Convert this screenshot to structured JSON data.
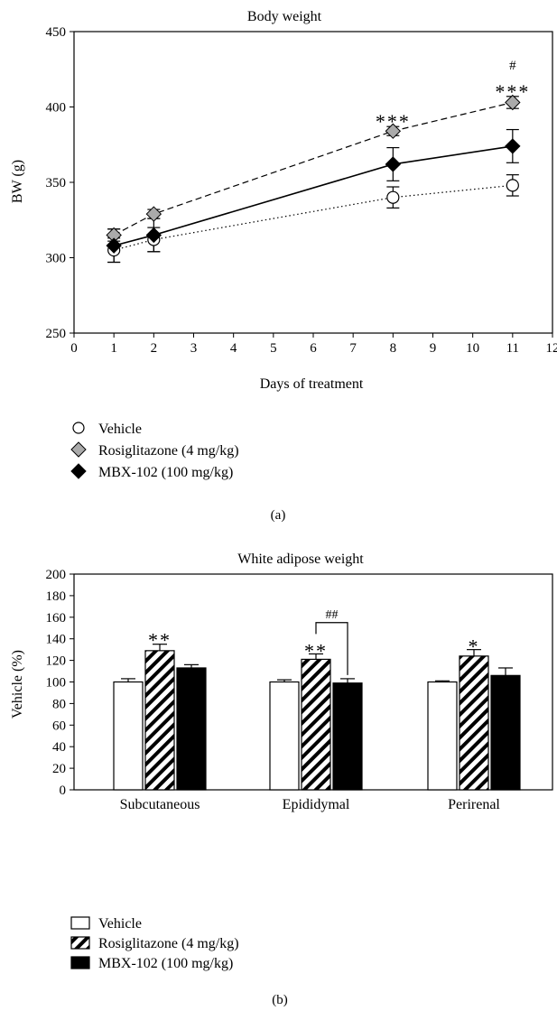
{
  "chart_data": [
    {
      "panel": "(a)",
      "type": "line",
      "title": "Body weight",
      "xlabel": "Days of treatment",
      "ylabel": "BW (g)",
      "xlim": [
        0,
        12
      ],
      "ylim": [
        250,
        450
      ],
      "xticks": [
        0,
        1,
        2,
        3,
        4,
        5,
        6,
        7,
        8,
        9,
        10,
        11,
        12
      ],
      "yticks": [
        250,
        300,
        350,
        400,
        450
      ],
      "legend_position": "bottom",
      "grid": false,
      "series": [
        {
          "name": "Vehicle",
          "marker": "open-circle",
          "line": "dotted",
          "x": [
            1,
            2,
            8,
            11
          ],
          "y": [
            305,
            312,
            340,
            348
          ],
          "err": [
            8,
            8,
            7,
            7
          ]
        },
        {
          "name": "Rosiglitazone (4 mg/kg)",
          "marker": "gray-diamond",
          "line": "dashed",
          "x": [
            1,
            2,
            8,
            11
          ],
          "y": [
            315,
            329,
            384,
            403
          ],
          "err": [
            4,
            3,
            3,
            4
          ]
        },
        {
          "name": "MBX-102 (100 mg/kg)",
          "marker": "black-diamond",
          "line": "solid",
          "x": [
            1,
            2,
            8,
            11
          ],
          "y": [
            308,
            315,
            362,
            374
          ],
          "err": [
            11,
            11,
            11,
            11
          ]
        }
      ],
      "annotations": [
        {
          "text": "***",
          "x": 8,
          "y": 393
        },
        {
          "text": "***",
          "x": 11,
          "y": 413
        },
        {
          "text": "#",
          "x": 11,
          "y": 425
        }
      ]
    },
    {
      "panel": "(b)",
      "type": "bar",
      "title": "White adipose weight",
      "xlabel": "",
      "ylabel": "Vehicle (%)",
      "ylim": [
        0,
        200
      ],
      "yticks": [
        0,
        20,
        40,
        60,
        80,
        100,
        120,
        140,
        160,
        180,
        200
      ],
      "categories": [
        "Subcutaneous",
        "Epididymal",
        "Perirenal"
      ],
      "legend_position": "bottom",
      "grid": false,
      "series": [
        {
          "name": "Vehicle",
          "fill": "white",
          "values": [
            100,
            100,
            100
          ],
          "err": [
            3,
            2,
            1
          ]
        },
        {
          "name": "Rosiglitazone (4 mg/kg)",
          "fill": "hatched",
          "values": [
            129,
            121,
            124
          ],
          "err": [
            6,
            5,
            6
          ]
        },
        {
          "name": "MBX-102 (100 mg/kg)",
          "fill": "black",
          "values": [
            113,
            99,
            106
          ],
          "err": [
            3,
            4,
            7
          ]
        }
      ],
      "annotations": [
        {
          "text": "**",
          "category": 0,
          "series": 1,
          "y": 141
        },
        {
          "text": "**",
          "category": 1,
          "series": 1,
          "y": 131
        },
        {
          "text": "*",
          "category": 2,
          "series": 1,
          "y": 135
        },
        {
          "text": "##",
          "bracket_from_series": 1,
          "bracket_to_series": 2,
          "category": 1,
          "y": 155
        }
      ]
    }
  ],
  "colors": {
    "vehicle": "#ffffff",
    "rosiglitazone": "#aaaaaa",
    "mbx102": "#000000"
  }
}
